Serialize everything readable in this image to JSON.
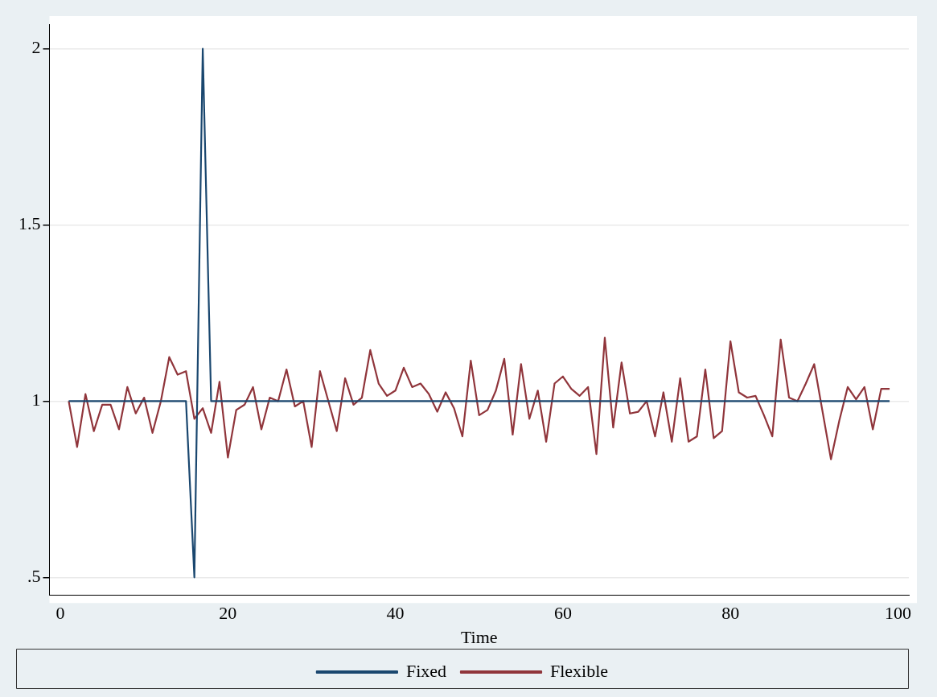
{
  "chart_data": {
    "type": "line",
    "xlabel": "Time",
    "x": [
      1,
      2,
      3,
      4,
      5,
      6,
      7,
      8,
      9,
      10,
      11,
      12,
      13,
      14,
      15,
      16,
      17,
      18,
      19,
      20,
      21,
      22,
      23,
      24,
      25,
      26,
      27,
      28,
      29,
      30,
      31,
      32,
      33,
      34,
      35,
      36,
      37,
      38,
      39,
      40,
      41,
      42,
      43,
      44,
      45,
      46,
      47,
      48,
      49,
      50,
      51,
      52,
      53,
      54,
      55,
      56,
      57,
      58,
      59,
      60,
      61,
      62,
      63,
      64,
      65,
      66,
      67,
      68,
      69,
      70,
      71,
      72,
      73,
      74,
      75,
      76,
      77,
      78,
      79,
      80,
      81,
      82,
      83,
      84,
      85,
      86,
      87,
      88,
      89,
      90,
      91,
      92,
      93,
      94,
      95,
      96,
      97,
      98,
      99
    ],
    "series": [
      {
        "name": "Fixed",
        "color": "#1a476f",
        "values": [
          1,
          1,
          1,
          1,
          1,
          1,
          1,
          1,
          1,
          1,
          1,
          1,
          1,
          1,
          1,
          0.5,
          2,
          1,
          1,
          1,
          1,
          1,
          1,
          1,
          1,
          1,
          1,
          1,
          1,
          1,
          1,
          1,
          1,
          1,
          1,
          1,
          1,
          1,
          1,
          1,
          1,
          1,
          1,
          1,
          1,
          1,
          1,
          1,
          1,
          1,
          1,
          1,
          1,
          1,
          1,
          1,
          1,
          1,
          1,
          1,
          1,
          1,
          1,
          1,
          1,
          1,
          1,
          1,
          1,
          1,
          1,
          1,
          1,
          1,
          1,
          1,
          1,
          1,
          1,
          1,
          1,
          1,
          1,
          1,
          1,
          1,
          1,
          1,
          1,
          1,
          1,
          1,
          1,
          1,
          1,
          1,
          1,
          1,
          1
        ]
      },
      {
        "name": "Flexible",
        "color": "#90353b",
        "values": [
          1.0,
          0.87,
          1.02,
          0.915,
          0.99,
          0.99,
          0.92,
          1.04,
          0.965,
          1.01,
          0.91,
          1.0,
          1.125,
          1.075,
          1.085,
          0.95,
          0.98,
          0.91,
          1.055,
          0.84,
          0.975,
          0.99,
          1.04,
          0.92,
          1.01,
          1.0,
          1.09,
          0.985,
          1.0,
          0.87,
          1.085,
          1.0,
          0.915,
          1.065,
          0.99,
          1.01,
          1.145,
          1.05,
          1.015,
          1.03,
          1.095,
          1.04,
          1.05,
          1.02,
          0.97,
          1.025,
          0.98,
          0.9,
          1.115,
          0.96,
          0.975,
          1.03,
          1.12,
          0.905,
          1.105,
          0.95,
          1.03,
          0.885,
          1.05,
          1.07,
          1.035,
          1.015,
          1.04,
          0.85,
          1.18,
          0.925,
          1.11,
          0.965,
          0.97,
          1.0,
          0.9,
          1.025,
          0.885,
          1.065,
          0.885,
          0.9,
          1.09,
          0.895,
          0.915,
          1.17,
          1.025,
          1.01,
          1.015,
          0.96,
          0.9,
          1.175,
          1.01,
          1.0,
          1.05,
          1.105,
          0.97,
          0.835,
          0.945,
          1.04,
          1.005,
          1.04,
          0.92,
          1.035,
          1.035
        ]
      }
    ],
    "xlim": [
      -1.3,
      101.3
    ],
    "xticks": [
      0,
      20,
      40,
      60,
      80,
      100
    ],
    "ylim": [
      0.45,
      2.07
    ],
    "yticks": [
      {
        "value": 0.5,
        "label": ".5"
      },
      1,
      1.5,
      2
    ],
    "grid": "y",
    "legend": "bottom",
    "marker": "none",
    "line_style": "solid"
  }
}
